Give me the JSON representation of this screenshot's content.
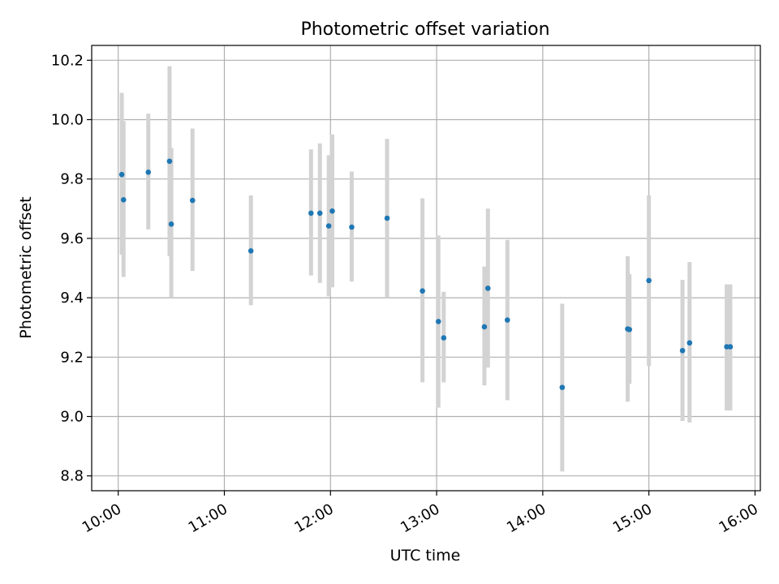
{
  "chart_data": {
    "type": "scatter",
    "title": "Photometric offset variation",
    "xlabel": "UTC time",
    "ylabel": "Photometric offset",
    "x_ticks": [
      "10:00",
      "11:00",
      "12:00",
      "13:00",
      "14:00",
      "15:00",
      "16:00"
    ],
    "y_ticks": [
      "8.8",
      "9.0",
      "9.2",
      "9.4",
      "9.6",
      "9.8",
      "10.0",
      "10.2"
    ],
    "xlim": [
      "09:45",
      "16:03"
    ],
    "ylim": [
      8.75,
      10.25
    ],
    "grid": true,
    "series": [
      {
        "marker_color": "#1f77b4",
        "errorbar_color": "#d3d3d3",
        "points": [
          {
            "x": "10:02",
            "y": 9.815,
            "ylo": 9.545,
            "yhi": 10.09
          },
          {
            "x": "10:03",
            "y": 9.73,
            "ylo": 9.47,
            "yhi": 9.995
          },
          {
            "x": "10:17",
            "y": 9.823,
            "ylo": 9.63,
            "yhi": 10.02
          },
          {
            "x": "10:29",
            "y": 9.86,
            "ylo": 9.54,
            "yhi": 10.18
          },
          {
            "x": "10:30",
            "y": 9.648,
            "ylo": 9.4,
            "yhi": 9.905
          },
          {
            "x": "10:42",
            "y": 9.728,
            "ylo": 9.49,
            "yhi": 9.97
          },
          {
            "x": "11:15",
            "y": 9.558,
            "ylo": 9.375,
            "yhi": 9.745
          },
          {
            "x": "11:49",
            "y": 9.685,
            "ylo": 9.475,
            "yhi": 9.9
          },
          {
            "x": "11:54",
            "y": 9.685,
            "ylo": 9.45,
            "yhi": 9.92
          },
          {
            "x": "11:59",
            "y": 9.642,
            "ylo": 9.405,
            "yhi": 9.88
          },
          {
            "x": "12:01",
            "y": 9.692,
            "ylo": 9.435,
            "yhi": 9.95
          },
          {
            "x": "12:12",
            "y": 9.638,
            "ylo": 9.455,
            "yhi": 9.825
          },
          {
            "x": "12:32",
            "y": 9.668,
            "ylo": 9.4,
            "yhi": 9.935
          },
          {
            "x": "12:52",
            "y": 9.423,
            "ylo": 9.115,
            "yhi": 9.735
          },
          {
            "x": "13:01",
            "y": 9.32,
            "ylo": 9.03,
            "yhi": 9.61
          },
          {
            "x": "13:04",
            "y": 9.265,
            "ylo": 9.115,
            "yhi": 9.42
          },
          {
            "x": "13:27",
            "y": 9.302,
            "ylo": 9.105,
            "yhi": 9.505
          },
          {
            "x": "13:29",
            "y": 9.432,
            "ylo": 9.165,
            "yhi": 9.7
          },
          {
            "x": "13:40",
            "y": 9.325,
            "ylo": 9.055,
            "yhi": 9.595
          },
          {
            "x": "14:11",
            "y": 9.098,
            "ylo": 8.815,
            "yhi": 9.38
          },
          {
            "x": "14:48",
            "y": 9.295,
            "ylo": 9.05,
            "yhi": 9.54
          },
          {
            "x": "14:49",
            "y": 9.293,
            "ylo": 9.11,
            "yhi": 9.48
          },
          {
            "x": "15:00",
            "y": 9.458,
            "ylo": 9.17,
            "yhi": 9.745
          },
          {
            "x": "15:19",
            "y": 9.222,
            "ylo": 8.985,
            "yhi": 9.46
          },
          {
            "x": "15:23",
            "y": 9.248,
            "ylo": 8.98,
            "yhi": 9.52
          },
          {
            "x": "15:44",
            "y": 9.235,
            "ylo": 9.02,
            "yhi": 9.445
          },
          {
            "x": "15:46",
            "y": 9.235,
            "ylo": 9.02,
            "yhi": 9.445
          }
        ]
      }
    ]
  }
}
